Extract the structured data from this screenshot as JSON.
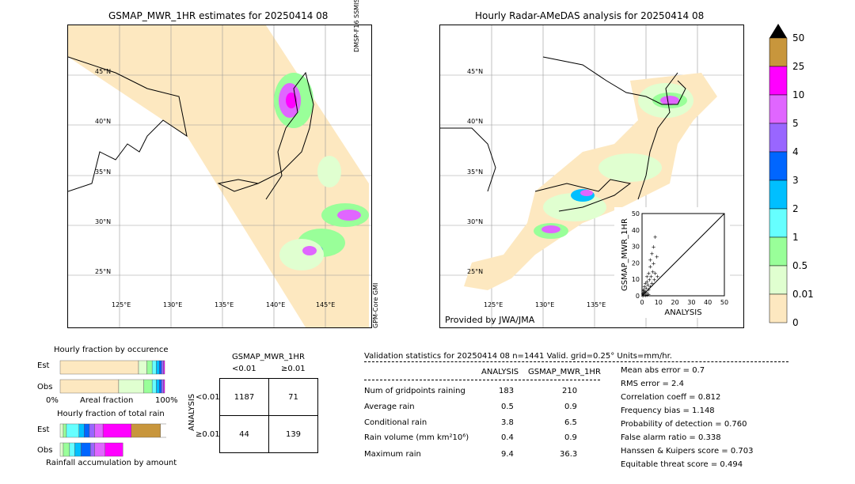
{
  "left_map": {
    "title": "GSMAP_MWR_1HR estimates for 20250414 08",
    "lat_labels": [
      "45°N",
      "40°N",
      "35°N",
      "30°N",
      "25°N"
    ],
    "lon_labels": [
      "125°E",
      "130°E",
      "135°E",
      "140°E",
      "145°E"
    ],
    "sensor_top": "DMSP-F16 SSMIS",
    "sensor_bottom": "GPM-Core GMI"
  },
  "right_map": {
    "title": "Hourly Radar-AMeDAS analysis for 20250414 08",
    "lat_labels": [
      "45°N",
      "40°N",
      "35°N",
      "30°N",
      "25°N"
    ],
    "lon_labels": [
      "125°E",
      "130°E",
      "135°E"
    ],
    "credit": "Provided by JWA/JMA"
  },
  "colorbar": {
    "labels": [
      "50",
      "25",
      "10",
      "5",
      "4",
      "3",
      "2",
      "1",
      "0.5",
      "0.01",
      "0"
    ],
    "colors": [
      "#c8963c",
      "#ff00ff",
      "#e066ff",
      "#9966ff",
      "#0066ff",
      "#00bfff",
      "#66ffff",
      "#99ff99",
      "#e0ffd0",
      "#fde8c0"
    ],
    "overflow_color": "#000000"
  },
  "chart_data": [
    {
      "type": "scatter",
      "title": "",
      "xlabel": "ANALYSIS",
      "ylabel": "GSMAP_MWR_1HR",
      "xlim": [
        0,
        50
      ],
      "ylim": [
        0,
        50
      ],
      "xticks": [
        "0",
        "10",
        "20",
        "30",
        "40",
        "50"
      ],
      "yticks": [
        "0",
        "10",
        "20",
        "30",
        "40",
        "50"
      ],
      "points": [
        [
          0.5,
          0.3
        ],
        [
          1,
          2
        ],
        [
          1,
          4
        ],
        [
          1.5,
          6
        ],
        [
          2,
          1
        ],
        [
          2,
          3
        ],
        [
          2,
          8
        ],
        [
          2.5,
          5
        ],
        [
          3,
          2
        ],
        [
          3,
          9
        ],
        [
          3,
          12
        ],
        [
          3.5,
          7
        ],
        [
          4,
          4
        ],
        [
          4,
          14
        ],
        [
          4.5,
          10
        ],
        [
          5,
          6
        ],
        [
          5,
          18
        ],
        [
          5,
          22
        ],
        [
          5.5,
          12
        ],
        [
          6,
          8
        ],
        [
          6,
          26
        ],
        [
          6.5,
          15
        ],
        [
          7,
          20
        ],
        [
          7,
          30
        ],
        [
          7.5,
          10
        ],
        [
          8,
          36
        ],
        [
          8,
          14
        ],
        [
          9,
          24
        ],
        [
          9.4,
          12
        ],
        [
          1,
          1
        ],
        [
          0.5,
          1.5
        ],
        [
          2,
          0.5
        ],
        [
          3,
          0.8
        ],
        [
          1.5,
          2.5
        ],
        [
          4,
          1.2
        ],
        [
          0.8,
          3.3
        ]
      ]
    },
    {
      "type": "bar",
      "title": "Hourly fraction by occurence",
      "xlabel": "Areal fraction",
      "categories": [
        "Est",
        "Obs"
      ],
      "x_ticks": [
        "0%",
        "100%"
      ],
      "series": [
        {
          "values": [
            0.75,
            0.56
          ]
        },
        {
          "values": [
            0.08,
            0.24
          ]
        },
        {
          "values": [
            0.05,
            0.08
          ]
        },
        {
          "values": [
            0.04,
            0.04
          ]
        },
        {
          "values": [
            0.03,
            0.03
          ]
        },
        {
          "values": [
            0.02,
            0.02
          ]
        },
        {
          "values": [
            0.02,
            0.02
          ]
        },
        {
          "values": [
            0.01,
            0.01
          ]
        }
      ]
    },
    {
      "type": "bar",
      "title": "Hourly fraction of total rain",
      "xlabel": "Rainfall accumulation by amount",
      "categories": [
        "Est",
        "Obs"
      ],
      "series": [
        {
          "values": [
            0.03,
            0.03
          ]
        },
        {
          "values": [
            0.03,
            0.06
          ]
        },
        {
          "values": [
            0.12,
            0.05
          ]
        },
        {
          "values": [
            0.05,
            0.06
          ]
        },
        {
          "values": [
            0.05,
            0.09
          ]
        },
        {
          "values": [
            0.05,
            0.04
          ]
        },
        {
          "values": [
            0.08,
            0.1
          ]
        },
        {
          "values": [
            0.27,
            0.17
          ]
        },
        {
          "values": [
            0.28,
            0.0
          ]
        },
        {
          "values": [
            0.14,
            0.0
          ]
        }
      ]
    }
  ],
  "contingency": {
    "title": "GSMAP_MWR_1HR",
    "col_labels": [
      "<0.01",
      "≥0.01"
    ],
    "row_axis": "ANALYSIS",
    "row_labels": [
      "<0.01",
      "≥0.01"
    ],
    "cells": [
      [
        "1187",
        "71"
      ],
      [
        "44",
        "139"
      ]
    ]
  },
  "validation": {
    "header": "Validation statistics for 20250414 08  n=1441 Valid. grid=0.25° Units=mm/hr.",
    "col1": "ANALYSIS",
    "col2": "GSMAP_MWR_1HR",
    "rows": [
      {
        "label": "Num of gridpoints raining",
        "a": "183",
        "b": "210"
      },
      {
        "label": "Average rain",
        "a": "0.5",
        "b": "0.9"
      },
      {
        "label": "Conditional rain",
        "a": "3.8",
        "b": "6.5"
      },
      {
        "label": "Rain volume (mm km²10⁶)",
        "a": "0.4",
        "b": "0.9"
      },
      {
        "label": "Maximum rain",
        "a": "9.4",
        "b": "36.3"
      }
    ],
    "scores": [
      "Mean abs error =    0.7",
      "RMS error =    2.4",
      "Correlation coeff =  0.812",
      "Frequency bias =  1.148",
      "Probability of detection =  0.760",
      "False alarm ratio =  0.338",
      "Hanssen & Kuipers score =  0.703",
      "Equitable threat score =  0.494"
    ]
  }
}
